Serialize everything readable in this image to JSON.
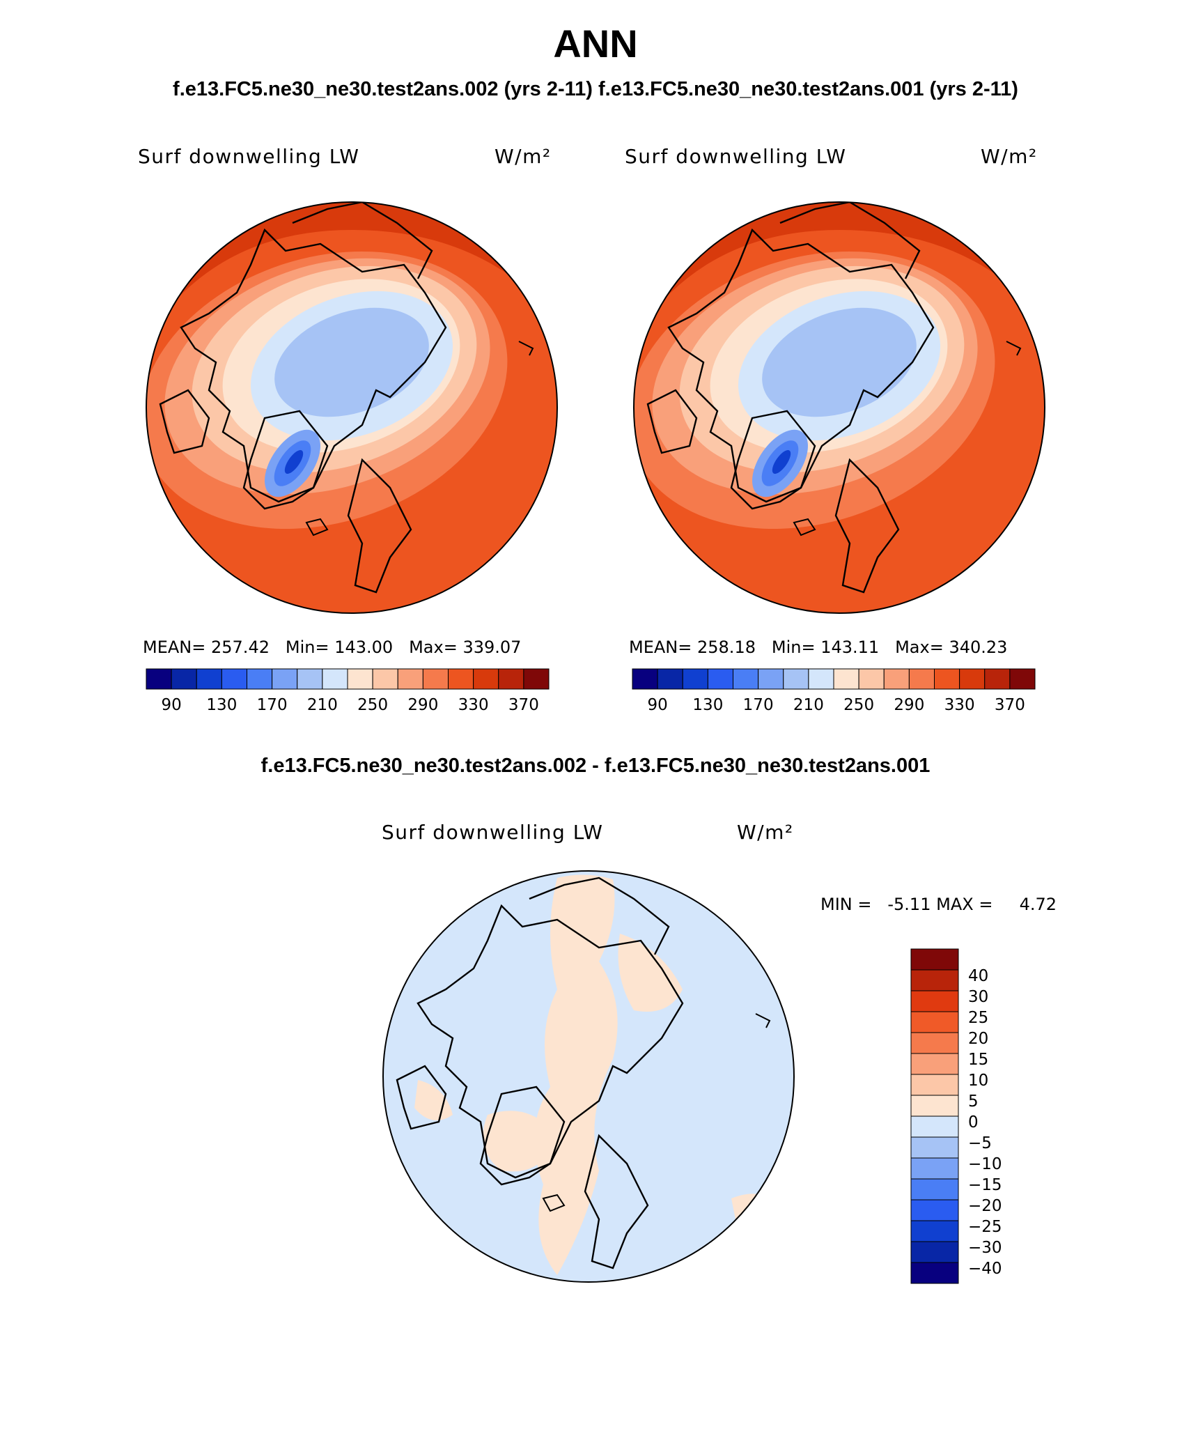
{
  "header": {
    "title": "ANN",
    "cases": "f.e13.FC5.ne30_ne30.test2ans.002 (yrs 2-11)  f.e13.FC5.ne30_ne30.test2ans.001 (yrs 2-11)"
  },
  "panels": [
    {
      "variable": "Surf downwelling LW",
      "units": "W/m²",
      "stats": {
        "mean_label": "MEAN=",
        "mean": "257.42",
        "min_label": "Min=",
        "min": "143.00",
        "max_label": "Max=",
        "max": "339.07"
      }
    },
    {
      "variable": "Surf downwelling LW",
      "units": "W/m²",
      "stats": {
        "mean_label": "MEAN=",
        "mean": "258.18",
        "min_label": "Min=",
        "min": "143.11",
        "max_label": "Max=",
        "max": "340.23"
      }
    }
  ],
  "colorbar_main": {
    "colors": [
      "#08007f",
      "#0826a6",
      "#1040d0",
      "#2a5cf0",
      "#4a7ef5",
      "#7aa2f5",
      "#a6c3f5",
      "#d4e6fb",
      "#fde4d0",
      "#fcc7a8",
      "#f9a07a",
      "#f57a4c",
      "#ed5520",
      "#d83a0c",
      "#b8240a",
      "#7f0808"
    ],
    "tick_labels": [
      "90",
      "130",
      "170",
      "210",
      "250",
      "290",
      "330",
      "370"
    ]
  },
  "diff": {
    "title": "f.e13.FC5.ne30_ne30.test2ans.002 - f.e13.FC5.ne30_ne30.test2ans.001",
    "variable": "Surf downwelling LW",
    "units": "W/m²",
    "min_label": "MIN =",
    "min": "-5.11",
    "max_label": "MAX =",
    "max": "4.72",
    "colorbar": {
      "colors_top_down": [
        "#7f0808",
        "#b8240a",
        "#e03a10",
        "#f05a28",
        "#f57a4c",
        "#f9a07a",
        "#fcc7a8",
        "#fde4d0",
        "#d4e6fb",
        "#a6c3f5",
        "#7aa2f5",
        "#4a7ef5",
        "#2a5cf0",
        "#1040d0",
        "#0826a6",
        "#08007f"
      ],
      "labels_top_down": [
        "40",
        "30",
        "25",
        "20",
        "15",
        "10",
        "5",
        "0",
        "−5",
        "−10",
        "−15",
        "−20",
        "−25",
        "−30",
        "−40"
      ]
    }
  }
}
